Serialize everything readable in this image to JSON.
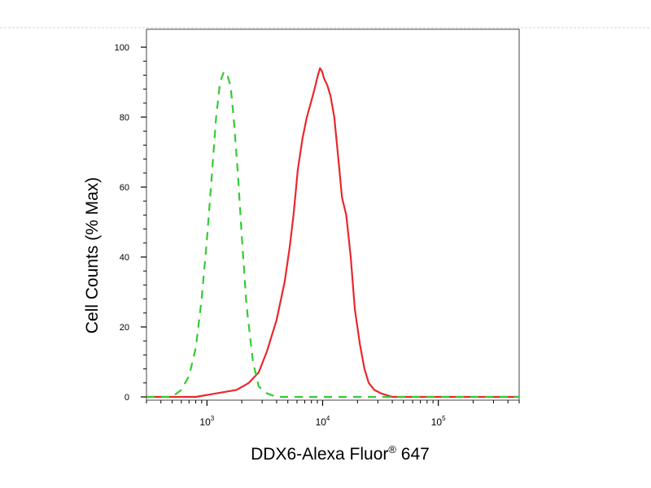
{
  "chart_data": {
    "type": "line",
    "title": "",
    "xlabel": "DDX6-Alexa Fluor",
    "xlabel_sup": "®",
    "xlabel_suffix": " 647",
    "ylabel": "Cell Counts (% Max)",
    "xscale": "log",
    "xlim": [
      300,
      500000
    ],
    "ylim": [
      0,
      100
    ],
    "y_ticks": [
      0,
      20,
      40,
      60,
      80,
      100
    ],
    "x_ticks": [
      {
        "value": 1000,
        "base": "10",
        "exp": "3"
      },
      {
        "value": 10000,
        "base": "10",
        "exp": "4"
      },
      {
        "value": 100000,
        "base": "10",
        "exp": "5"
      }
    ],
    "grid": false,
    "legend": "none",
    "series": [
      {
        "color": "#e8282b",
        "style": "solid",
        "x": [
          300,
          800,
          1200,
          1800,
          2300,
          2800,
          3300,
          4000,
          4700,
          5200,
          5600,
          6100,
          6700,
          7300,
          7900,
          8500,
          9100,
          9500,
          9900,
          10300,
          11000,
          11700,
          12600,
          13500,
          14700,
          16000,
          17500,
          19000,
          21000,
          23000,
          25000,
          28000,
          32000,
          40000,
          60000,
          100000,
          200000,
          500000
        ],
        "y": [
          0,
          0,
          1,
          2,
          4,
          7,
          13,
          22,
          33,
          43,
          52,
          65,
          74,
          80,
          84,
          88,
          92,
          94,
          93,
          91,
          89,
          86,
          80,
          70,
          57,
          52,
          40,
          25,
          15,
          8,
          4,
          2,
          1,
          0,
          0,
          0,
          0,
          0
        ]
      },
      {
        "color": "#33cc33",
        "style": "dashed",
        "x": [
          300,
          500,
          600,
          700,
          800,
          900,
          1000,
          1100,
          1200,
          1300,
          1400,
          1500,
          1600,
          1700,
          1850,
          2000,
          2200,
          2500,
          2800,
          3300,
          4000,
          6000,
          20000,
          500000
        ],
        "y": [
          0,
          0,
          2,
          6,
          14,
          28,
          45,
          63,
          80,
          90,
          93,
          92,
          89,
          80,
          64,
          46,
          26,
          10,
          3,
          1,
          0,
          0,
          0,
          0
        ]
      }
    ]
  }
}
